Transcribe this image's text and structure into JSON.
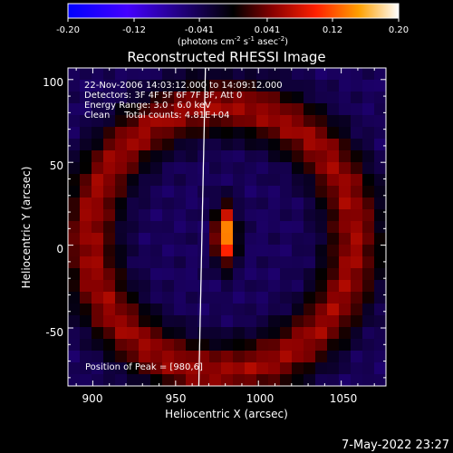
{
  "colorbar": {
    "ticks": [
      "-0.20",
      "-0.12",
      "-0.041",
      "0.041",
      "0.12",
      "0.20"
    ],
    "tick_values": [
      -0.2,
      -0.12,
      -0.041,
      0.041,
      0.12,
      0.2
    ],
    "range": [
      -0.2,
      0.2
    ],
    "unit_main": "(photons cm",
    "unit_exp1": "-2",
    "unit_mid1": " s",
    "unit_exp2": "-1",
    "unit_mid2": " asec",
    "unit_exp3": "-2",
    "unit_end": ")"
  },
  "chart_data": {
    "type": "heatmap",
    "title": "Reconstructed RHESSI Image",
    "xlabel": "Heliocentric X (arcsec)",
    "ylabel": "Heliocentric Y (arcsec)",
    "xlim": [
      885,
      1077
    ],
    "ylim": [
      -85,
      107
    ],
    "xticks": [
      "900",
      "950",
      "1000",
      "1050"
    ],
    "xtick_values": [
      900,
      950,
      1000,
      1050
    ],
    "yticks": [
      "100",
      "50",
      "0",
      "-50"
    ],
    "ytick_values": [
      100,
      50,
      0,
      -50
    ],
    "annotations": [
      "22-Nov-2006 14:03:12.000 to 14:09:12.000",
      "Detectors: 3F 4F 5F 6F 7F 8F, Att 0",
      "Energy Range: 3.0 - 6.0 keV",
      "Clean     Total counts: 4.81E+04"
    ],
    "peak_label": "Position of Peak = [980,6]",
    "peak": [
      980,
      6
    ],
    "source": {
      "x": 980,
      "y": 6,
      "sx": 4.5,
      "sy": 12,
      "amplitude": 0.2
    },
    "ring": {
      "x": 978,
      "y": 4,
      "radius": 80,
      "width": 12,
      "amplitude": 0.1
    },
    "background": -0.045,
    "limb_x": 966
  },
  "timestamp": "7-May-2022 23:27"
}
